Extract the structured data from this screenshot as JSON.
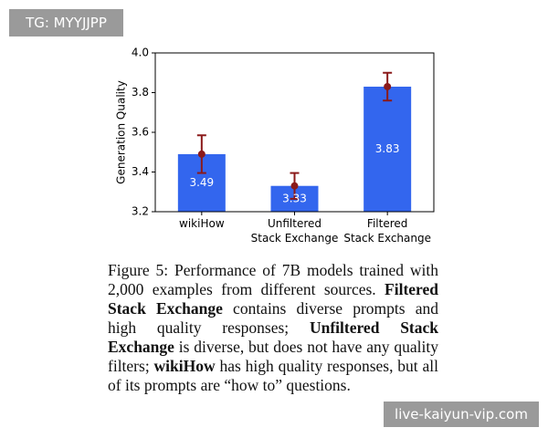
{
  "chart_data": {
    "type": "bar",
    "y_label": "Generation Quality",
    "categories": [
      "wikiHow",
      "Unfiltered\nStack Exchange",
      "Filtered\nStack Exchange"
    ],
    "values": [
      3.49,
      3.33,
      3.83
    ],
    "errors": [
      0.095,
      0.065,
      0.07
    ],
    "color": "#3366ee",
    "error_color": "#8b1a1a",
    "ylim": [
      3.2,
      4.0
    ],
    "yticks": [
      3.2,
      3.4,
      3.6,
      3.8,
      {
        "value": 4.0,
        "label": "4.0"
      }
    ]
  },
  "caption": [
    {
      "text": "Figure 5: Performance of 7B models trained with 2,000 examples from different sources. ",
      "bold": false
    },
    {
      "text": "Filtered Stack Exchange",
      "bold": true
    },
    {
      "text": " contains diverse prompts and high quality responses; ",
      "bold": false
    },
    {
      "text": "Unfiltered Stack Exchange",
      "bold": true
    },
    {
      "text": " is diverse, but does not have any quality filters; ",
      "bold": false
    },
    {
      "text": "wikiHow",
      "bold": true
    },
    {
      "text": " has high quality responses, but all of its prompts are “how to” questions.",
      "bold": false
    }
  ],
  "watermarks": [
    "TG: MYYJJPP",
    "live-kaiyun-vip.com"
  ]
}
